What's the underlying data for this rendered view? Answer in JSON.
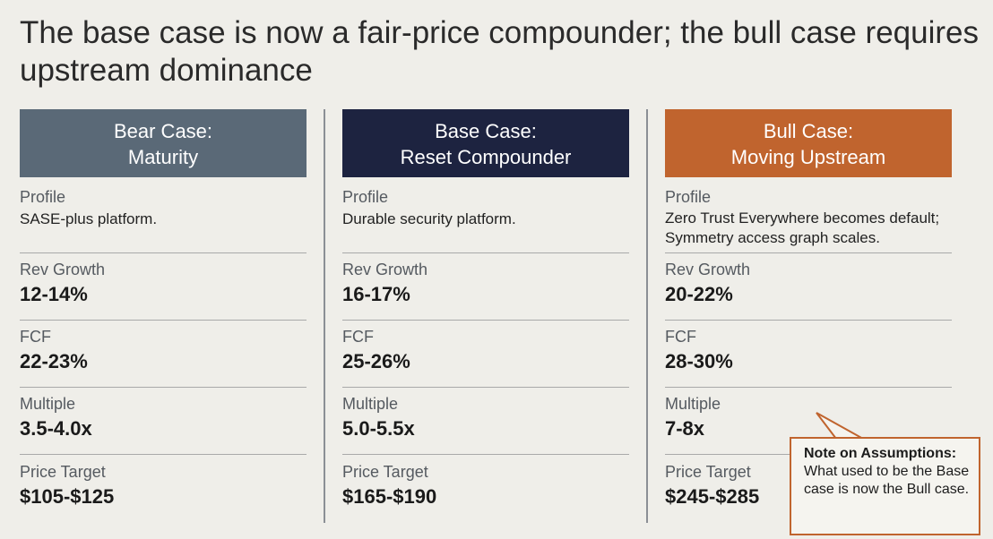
{
  "title": "The base case is now a fair-price compounder; the bull case requires upstream dominance",
  "columns": [
    {
      "header_line1": "Bear Case:",
      "header_line2": "Maturity",
      "profile_label": "Profile",
      "profile_value": "SASE-plus platform.",
      "rev_label": "Rev Growth",
      "rev_value": "12-14%",
      "fcf_label": "FCF",
      "fcf_value": "22-23%",
      "multiple_label": "Multiple",
      "multiple_value": "3.5-4.0x",
      "price_label": "Price Target",
      "price_value": "$105-$125"
    },
    {
      "header_line1": "Base Case:",
      "header_line2": "Reset Compounder",
      "profile_label": "Profile",
      "profile_value": "Durable security platform.",
      "rev_label": "Rev Growth",
      "rev_value": "16-17%",
      "fcf_label": "FCF",
      "fcf_value": "25-26%",
      "multiple_label": "Multiple",
      "multiple_value": "5.0-5.5x",
      "price_label": "Price Target",
      "price_value": "$165-$190"
    },
    {
      "header_line1": "Bull Case:",
      "header_line2": "Moving Upstream",
      "profile_label": "Profile",
      "profile_value": "Zero Trust Everywhere becomes default; Symmetry access graph scales.",
      "rev_label": "Rev Growth",
      "rev_value": "20-22%",
      "fcf_label": "FCF",
      "fcf_value": "28-30%",
      "multiple_label": "Multiple",
      "multiple_value": "7-8x",
      "price_label": "Price Target",
      "price_value": "$245-$285"
    }
  ],
  "note": {
    "title": "Note on Assumptions:",
    "body": "What used to be the Base case is now the Bull case."
  },
  "colors": {
    "bear_header": "#5a6977",
    "base_header": "#1d2340",
    "bull_header": "#c0642e",
    "background": "#efeee9"
  }
}
